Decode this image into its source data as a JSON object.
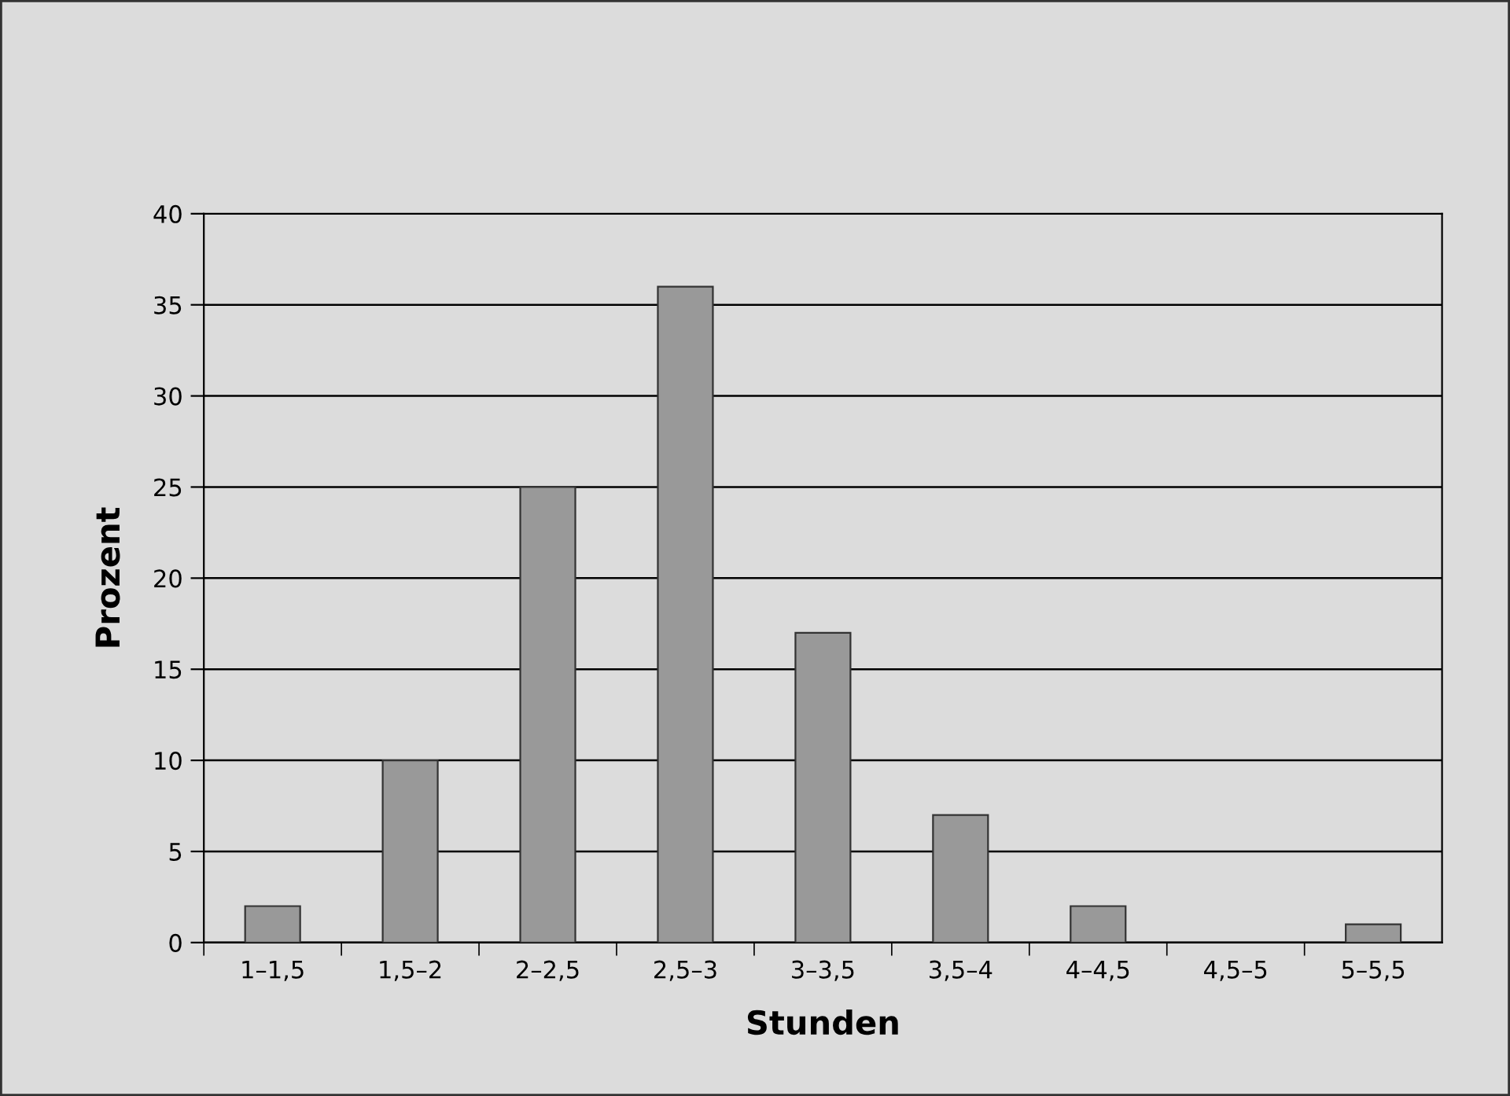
{
  "chart_data": {
    "type": "bar",
    "xlabel": "Stunden",
    "ylabel": "Prozent",
    "categories": [
      "1–1,5",
      "1,5–2",
      "2–2,5",
      "2,5–3",
      "3–3,5",
      "3,5–4",
      "4–4,5",
      "4,5–5",
      "5–5,5"
    ],
    "values": [
      2,
      10,
      25,
      36,
      17,
      7,
      2,
      0,
      1
    ],
    "color": "#999999",
    "ylim": [
      0,
      40
    ],
    "yticks": [
      0,
      5,
      10,
      15,
      20,
      25,
      30,
      35,
      40
    ],
    "grid": "y",
    "legend": false
  }
}
